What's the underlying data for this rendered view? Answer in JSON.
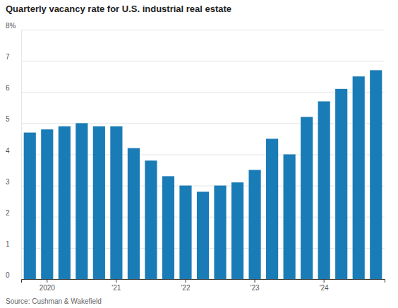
{
  "chart_data": {
    "type": "bar",
    "title": "Quarterly vacancy rate for U.S. industrial real estate",
    "source": "Source: Cushman & Wakefield",
    "categories": [
      null,
      "2020",
      null,
      null,
      null,
      "'21",
      null,
      null,
      null,
      "'22",
      null,
      null,
      null,
      "'23",
      null,
      null,
      null,
      "'24",
      null,
      null,
      null
    ],
    "values": [
      4.7,
      4.8,
      4.9,
      5.0,
      4.9,
      4.9,
      4.2,
      3.8,
      3.3,
      3.0,
      2.8,
      3.0,
      3.1,
      3.5,
      4.5,
      4.0,
      5.2,
      5.7,
      6.1,
      6.5,
      6.7
    ],
    "color": "#1a7cb6",
    "ylim": [
      0,
      8
    ],
    "yticks": [
      0,
      1,
      2,
      3,
      4,
      5,
      6,
      7,
      {
        "value": 8,
        "label": "8%"
      }
    ],
    "grid": true
  }
}
